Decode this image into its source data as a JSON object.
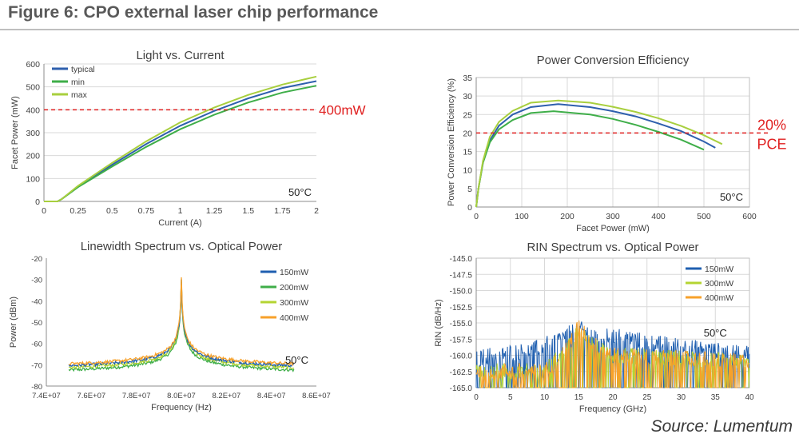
{
  "figure": {
    "title": "Figure 6: CPO external laser chip performance",
    "source": "Source: Lumentum"
  },
  "colors": {
    "typical": "#2e5fad",
    "min": "#3fae49",
    "max": "#a8cf3e",
    "b150": "#1f5fb0",
    "b200": "#3fae49",
    "b300": "#b4d432",
    "b400": "#f7a12a",
    "threshold": "#e02020",
    "axis": "#404040",
    "grid": "#d9d9d9"
  },
  "chart_data": [
    {
      "id": "lic",
      "type": "line",
      "title": "Light vs. Current",
      "xlabel": "Current (A)",
      "ylabel": "Facet Power (mW)",
      "xlim": [
        0,
        2
      ],
      "ylim": [
        0,
        600
      ],
      "xticks": [
        0,
        0.25,
        0.5,
        0.75,
        1,
        1.25,
        1.5,
        1.75,
        2
      ],
      "xtick_labels": [
        "0",
        "0.25",
        "0.5",
        "0.75",
        "1",
        "1.25",
        "1.5",
        "1.75",
        "2"
      ],
      "yticks": [
        0,
        100,
        200,
        300,
        400,
        500,
        600
      ],
      "ytick_labels": [
        "0",
        "100",
        "200",
        "300",
        "400",
        "500",
        "600"
      ],
      "series": [
        {
          "name": "typical",
          "color_key": "typical",
          "x": [
            0,
            0.1,
            0.13,
            0.25,
            0.5,
            0.75,
            1,
            1.25,
            1.5,
            1.75,
            2
          ],
          "y": [
            0,
            0,
            10,
            65,
            160,
            250,
            330,
            395,
            450,
            495,
            525
          ]
        },
        {
          "name": "min",
          "color_key": "min",
          "x": [
            0,
            0.1,
            0.13,
            0.25,
            0.5,
            0.75,
            1,
            1.25,
            1.5,
            1.75,
            2
          ],
          "y": [
            0,
            0,
            10,
            62,
            152,
            238,
            315,
            378,
            432,
            475,
            505
          ]
        },
        {
          "name": "max",
          "color_key": "max",
          "x": [
            0,
            0.1,
            0.13,
            0.25,
            0.5,
            0.75,
            1,
            1.25,
            1.5,
            1.75,
            2
          ],
          "y": [
            0,
            0,
            10,
            68,
            168,
            262,
            345,
            410,
            465,
            510,
            545
          ]
        }
      ],
      "threshold": {
        "value": 400,
        "label": "400mW"
      },
      "annotation": "50°C",
      "legend_position": "top-left"
    },
    {
      "id": "pce",
      "type": "line",
      "title": "Power Conversion Efficiency",
      "xlabel": "Facet Power (mW)",
      "ylabel": "Power Conversion Efficiency (%)",
      "xlim": [
        0,
        600
      ],
      "ylim": [
        0,
        35
      ],
      "xticks": [
        0,
        100,
        200,
        300,
        400,
        500,
        600
      ],
      "xtick_labels": [
        "0",
        "100",
        "200",
        "300",
        "400",
        "500",
        "600"
      ],
      "yticks": [
        0,
        5,
        10,
        15,
        20,
        25,
        30,
        35
      ],
      "ytick_labels": [
        "0",
        "5",
        "10",
        "15",
        "20",
        "25",
        "30",
        "35"
      ],
      "series": [
        {
          "name": "typical",
          "color_key": "typical",
          "x": [
            0,
            5,
            15,
            30,
            50,
            80,
            120,
            180,
            250,
            300,
            350,
            400,
            450,
            500,
            525
          ],
          "y": [
            0,
            5,
            12,
            18,
            22,
            25,
            27,
            27.8,
            27,
            25.9,
            24.5,
            22.6,
            20.5,
            17.7,
            16
          ]
        },
        {
          "name": "min",
          "color_key": "min",
          "x": [
            0,
            5,
            15,
            30,
            50,
            80,
            120,
            170,
            250,
            300,
            350,
            400,
            450,
            500
          ],
          "y": [
            0,
            5,
            12,
            17.5,
            21,
            23.5,
            25.4,
            25.9,
            25,
            23.8,
            22.2,
            20.3,
            18.2,
            15.5
          ]
        },
        {
          "name": "max",
          "color_key": "max",
          "x": [
            0,
            5,
            15,
            30,
            50,
            80,
            120,
            180,
            250,
            300,
            350,
            400,
            450,
            500,
            540
          ],
          "y": [
            0,
            5,
            12.5,
            19,
            23,
            26,
            28.2,
            28.8,
            28.2,
            27.1,
            25.7,
            24,
            21.9,
            19.4,
            17
          ]
        }
      ],
      "threshold": {
        "value": 20,
        "label": [
          "20%",
          "PCE"
        ]
      },
      "annotation": "50°C",
      "legend_position": "none"
    },
    {
      "id": "lw",
      "type": "line",
      "title": "Linewidth Spectrum vs. Optical Power",
      "xlabel": "Frequency (Hz)",
      "ylabel": "Power (dBm)",
      "xlim": [
        74000000,
        86000000
      ],
      "ylim": [
        -80,
        -20
      ],
      "xticks": [
        74000000,
        76000000,
        78000000,
        80000000,
        82000000,
        84000000,
        86000000
      ],
      "xtick_labels": [
        "7.4E+07",
        "7.6E+07",
        "7.8E+07",
        "8.0E+07",
        "8.2E+07",
        "8.4E+07",
        "8.6E+07"
      ],
      "yticks": [
        -80,
        -70,
        -60,
        -50,
        -40,
        -30,
        -20
      ],
      "ytick_labels": [
        "-80",
        "-70",
        "-60",
        "-50",
        "-40",
        "-30",
        "-20"
      ],
      "center_hz": 80000000,
      "span_hz": [
        75000000,
        85000000
      ],
      "series": [
        {
          "name": "150mW",
          "color_key": "b150",
          "floor": -74.3,
          "peak": -30
        },
        {
          "name": "200mW",
          "color_key": "b200",
          "floor": -76.5,
          "peak": -31
        },
        {
          "name": "300mW",
          "color_key": "b300",
          "floor": -75.3,
          "peak": -30
        },
        {
          "name": "400mW",
          "color_key": "b400",
          "floor": -73.5,
          "peak": -29
        }
      ],
      "annotation": "50°C",
      "legend_position": "top-right"
    },
    {
      "id": "rin",
      "type": "line",
      "title": "RIN Spectrum vs. Optical Power",
      "xlabel": "Frequency (GHz)",
      "ylabel": "RIN (dB/Hz)",
      "xlim": [
        0,
        40
      ],
      "ylim": [
        -165,
        -145
      ],
      "xticks": [
        0,
        5,
        10,
        15,
        20,
        25,
        30,
        35,
        40
      ],
      "xtick_labels": [
        "0",
        "5",
        "10",
        "15",
        "20",
        "25",
        "30",
        "35",
        "40"
      ],
      "yticks": [
        -165,
        -162.5,
        -160,
        -157.5,
        -155,
        -152.5,
        -150,
        -147.5,
        -145
      ],
      "ytick_labels": [
        "-165.0",
        "-162.5",
        "-160.0",
        "-157.5",
        "-155.0",
        "-152.5",
        "-150.0",
        "-147.5",
        "-145.0"
      ],
      "series": [
        {
          "name": "150mW",
          "color_key": "b150",
          "env_x": [
            0,
            3,
            8,
            12,
            15,
            18,
            21,
            25,
            30,
            35,
            40
          ],
          "env_y": [
            -160.5,
            -159.8,
            -159.3,
            -157.6,
            -155.9,
            -157.2,
            -157.0,
            -158.0,
            -158.6,
            -159.3,
            -159.6
          ]
        },
        {
          "name": "300mW",
          "color_key": "b300",
          "env_x": [
            0,
            10,
            13,
            15,
            17,
            20,
            30,
            40
          ],
          "env_y": [
            -162.5,
            -162.5,
            -159,
            -156.5,
            -158.5,
            -160.0,
            -160.5,
            -161.0
          ]
        },
        {
          "name": "400mW",
          "color_key": "b400",
          "env_x": [
            0,
            10,
            12.5,
            15,
            17.5,
            20,
            30,
            40
          ],
          "env_y": [
            -162.5,
            -162.5,
            -160,
            -155.5,
            -158.5,
            -160.0,
            -160.5,
            -161.0
          ]
        }
      ],
      "annotation": "50°C",
      "legend_position": "top-right"
    }
  ]
}
